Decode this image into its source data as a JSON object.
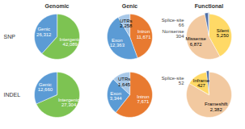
{
  "chart_data": [
    {
      "type": "pie",
      "title": "Genomic",
      "ylabel": "SNP",
      "categories": [
        "Intergenic",
        "Genic"
      ],
      "values": [
        42089,
        26312
      ],
      "value_labels": [
        "42,089",
        "26,312"
      ],
      "colors": [
        "#7DC352",
        "#5B9BD5"
      ],
      "data_labels": true
    },
    {
      "type": "pie",
      "title": "Genic",
      "categories": [
        "Intron",
        "Exon",
        "UTRs"
      ],
      "values": [
        11671,
        12363,
        2258
      ],
      "value_labels": [
        "11,671",
        "12,363",
        "2,258"
      ],
      "colors": [
        "#E87A30",
        "#5B9BD5",
        "#A8C8E8"
      ],
      "data_labels": true
    },
    {
      "type": "pie",
      "title": "Functional",
      "categories": [
        "Silent",
        "Missense",
        "Nonsense",
        "Splice-site"
      ],
      "values": [
        5250,
        6872,
        304,
        66
      ],
      "value_labels": [
        "5,250",
        "6,872",
        "304",
        "66"
      ],
      "colors": [
        "#FFD966",
        "#F2C9A0",
        "#4E6FA8",
        "#4E6FA8"
      ],
      "data_labels": true
    },
    {
      "type": "pie",
      "ylabel": "INDEL",
      "categories": [
        "Intergenic",
        "Genic"
      ],
      "values": [
        27304,
        12660
      ],
      "value_labels": [
        "27,304",
        "12,660"
      ],
      "colors": [
        "#7DC352",
        "#5B9BD5"
      ],
      "data_labels": true
    },
    {
      "type": "pie",
      "categories": [
        "Intron",
        "Exon",
        "UTRs"
      ],
      "values": [
        7671,
        3344,
        1645
      ],
      "value_labels": [
        "7,671",
        "3,344",
        "1,645"
      ],
      "colors": [
        "#E87A30",
        "#5B9BD5",
        "#A8C8E8"
      ],
      "data_labels": true
    },
    {
      "type": "pie",
      "categories": [
        "Frameshift",
        "Inframe",
        "Splice-site"
      ],
      "values": [
        2382,
        427,
        52
      ],
      "value_labels": [
        "2,382",
        "427",
        "52"
      ],
      "colors": [
        "#F2C9A0",
        "#FFD966",
        "#4E6FA8"
      ],
      "data_labels": true
    }
  ]
}
